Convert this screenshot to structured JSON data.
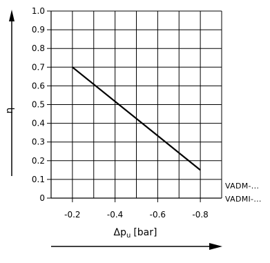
{
  "chart_data": {
    "type": "line",
    "title": "",
    "xlabel": "Δp",
    "xlabel_sub": "u",
    "xlabel_unit": "[bar]",
    "ylabel": "η",
    "xlim": [
      -0.1,
      -0.9
    ],
    "ylim": [
      0,
      1.0
    ],
    "grid": true,
    "x_ticks": [
      -0.2,
      -0.4,
      -0.6,
      -0.8
    ],
    "x_tick_labels": [
      "-0.2",
      "-0.4",
      "-0.6",
      "-0.8"
    ],
    "y_ticks": [
      0,
      0.1,
      0.2,
      0.3,
      0.4,
      0.5,
      0.6,
      0.7,
      0.8,
      0.9,
      1.0
    ],
    "y_tick_labels": [
      "0",
      "0.1",
      "0.2",
      "0.3",
      "0.4",
      "0.5",
      "0.6",
      "0.7",
      "0.8",
      "0.9",
      "1.0"
    ],
    "series": [
      {
        "x": [
          -0.2,
          -0.8
        ],
        "y": [
          0.7,
          0.15
        ]
      }
    ],
    "annotations": [
      "VADM-...",
      "VADMI-..."
    ]
  }
}
